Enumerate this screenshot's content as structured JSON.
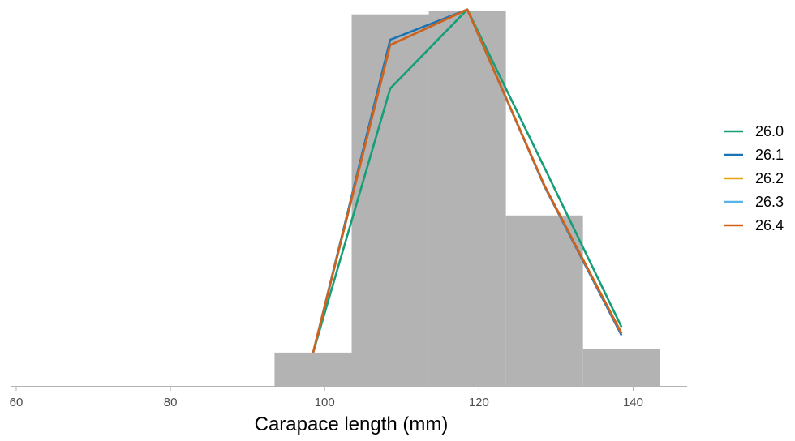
{
  "chart_data": {
    "type": "bar",
    "xlabel": "Carapace length (mm)",
    "ylabel": "",
    "xlim": [
      60,
      147
    ],
    "ylim": [
      0,
      100
    ],
    "x_ticks": [
      60,
      80,
      100,
      120,
      140
    ],
    "x_tick_labels": [
      "60",
      "80",
      "100",
      "120",
      "140"
    ],
    "grid": false,
    "legend_position": "right",
    "histogram": {
      "color": "#b3b3b3",
      "bins": [
        {
          "x0": 93.5,
          "x1": 103.5,
          "value": 8.9
        },
        {
          "x0": 103.5,
          "x1": 113.5,
          "value": 99.2
        },
        {
          "x0": 113.5,
          "x1": 123.5,
          "value": 100
        },
        {
          "x0": 123.5,
          "x1": 133.5,
          "value": 45.5
        },
        {
          "x0": 133.5,
          "x1": 143.5,
          "value": 9.8
        }
      ]
    },
    "x": [
      98.5,
      108.5,
      118.5,
      128.5,
      138.5
    ],
    "series": [
      {
        "name": "26.0",
        "color": "#159e77",
        "values": [
          8.9,
          79.4,
          100.5,
          58.3,
          15.7
        ]
      },
      {
        "name": "26.1",
        "color": "#1a73b3",
        "values": [
          8.9,
          92.4,
          100.5,
          53.3,
          13.5
        ]
      },
      {
        "name": "26.2",
        "color": "#e7a317",
        "values": [
          8.9,
          91.0,
          100.5,
          53.5,
          14.0
        ]
      },
      {
        "name": "26.3",
        "color": "#56b4e9",
        "values": [
          8.9,
          91.0,
          100.5,
          53.5,
          14.0
        ]
      },
      {
        "name": "26.4",
        "color": "#d1601a",
        "values": [
          8.9,
          91.0,
          100.5,
          53.5,
          14.0
        ]
      }
    ]
  }
}
